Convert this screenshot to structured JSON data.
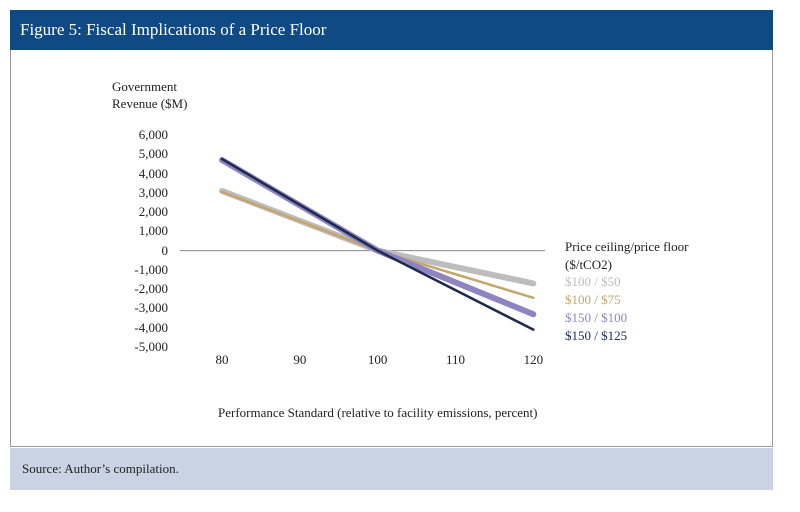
{
  "header": {
    "title": "Figure 5: Fiscal Implications of a Price Floor"
  },
  "chart_data": {
    "type": "line",
    "y_label": "Government Revenue ($M)",
    "x_label": "Performance Standard (relative to facility emissions, percent)",
    "legend_title": "Price ceiling/price floor ($/tCO2)",
    "x": [
      80,
      100,
      120
    ],
    "xlim": [
      74.6,
      121.5
    ],
    "xticks": [
      80,
      90,
      100,
      110,
      120
    ],
    "ylim": [
      -5000,
      6000
    ],
    "yticks": [
      {
        "value": 6000,
        "label": "6,000"
      },
      {
        "value": 5000,
        "label": "5,000"
      },
      {
        "value": 4000,
        "label": "4,000"
      },
      {
        "value": 3000,
        "label": "3,000"
      },
      {
        "value": 2000,
        "label": "2,000"
      },
      {
        "value": 1000,
        "label": "1,000"
      },
      0,
      {
        "value": -1000,
        "label": "-1,000"
      },
      {
        "value": -2000,
        "label": "-2,000"
      },
      {
        "value": -3000,
        "label": "-3,000"
      },
      {
        "value": -4000,
        "label": "-4,000"
      },
      {
        "value": -5000,
        "label": "-5,000"
      }
    ],
    "zero_line": true,
    "series": [
      {
        "name": "$100 / $50",
        "color": "#bdbdbd",
        "width": 6,
        "values": [
          3100,
          0,
          -1700
        ]
      },
      {
        "name": "$100 / $75",
        "color": "#c4a56a",
        "width": 2.5,
        "values": [
          3050,
          0,
          -2450
        ]
      },
      {
        "name": "$150 / $100",
        "color": "#8e84c0",
        "width": 6,
        "values": [
          4700,
          0,
          -3300
        ]
      },
      {
        "name": "$150 / $125",
        "color": "#1b2a4e",
        "width": 2.5,
        "values": [
          4750,
          0,
          -4100
        ]
      }
    ]
  },
  "footer": {
    "source": "Source: Author’s compilation."
  }
}
